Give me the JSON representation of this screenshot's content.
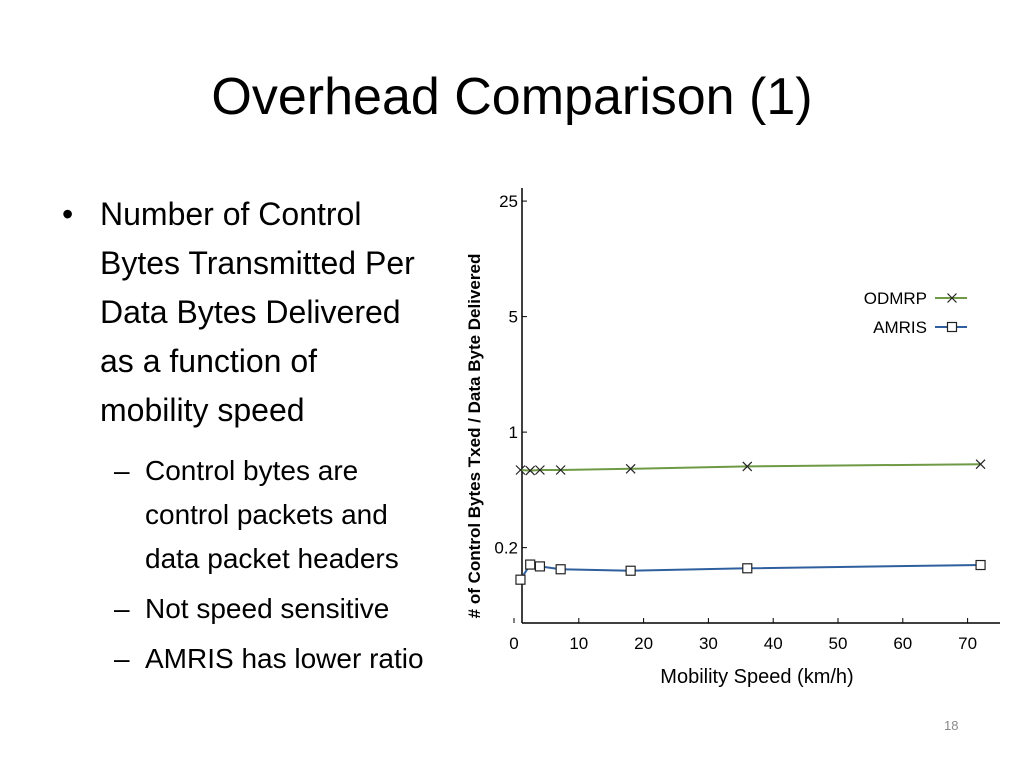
{
  "slide": {
    "title": "Overhead Comparison (1)",
    "bullets": [
      {
        "text": "Number of Control Bytes Transmitted Per Data Bytes Delivered as a function of mobility speed",
        "lines": [
          "Number of Control",
          "Bytes Transmitted Per",
          "Data Bytes Delivered",
          "as a function of",
          "mobility speed"
        ],
        "sub": [
          {
            "lines": [
              "Control bytes are",
              "control packets and",
              "data packet headers"
            ]
          },
          {
            "lines": [
              "Not speed sensitive"
            ]
          },
          {
            "lines": [
              "AMRIS has lower ratio"
            ]
          }
        ]
      }
    ],
    "slide_number": "18"
  },
  "chart_data": {
    "type": "line",
    "title": "",
    "xlabel": "Mobility Speed (km/h)",
    "ylabel": "# of Control Bytes Txed / Data Byte Delivered",
    "y_scale": "log",
    "xlim": [
      0,
      75
    ],
    "ylim": [
      0.07,
      30
    ],
    "x_ticks": [
      0,
      10,
      20,
      30,
      40,
      50,
      60,
      70
    ],
    "y_ticks": [
      0.2,
      1,
      5,
      25
    ],
    "y_tick_labels": [
      "0.2",
      "1",
      "5",
      "25"
    ],
    "legend_position": "upper-right",
    "grid": false,
    "series": [
      {
        "name": "ODMRP",
        "color": "#6e9a45",
        "marker": "x",
        "x": [
          1,
          2.5,
          4,
          7.2,
          18,
          36,
          72
        ],
        "y": [
          0.59,
          0.585,
          0.59,
          0.59,
          0.6,
          0.62,
          0.64
        ]
      },
      {
        "name": "AMRIS",
        "color": "#2f5f9e",
        "marker": "square",
        "x": [
          1,
          2.5,
          4,
          7.2,
          18,
          36,
          72
        ],
        "y": [
          0.128,
          0.158,
          0.154,
          0.148,
          0.145,
          0.15,
          0.157
        ]
      }
    ]
  }
}
